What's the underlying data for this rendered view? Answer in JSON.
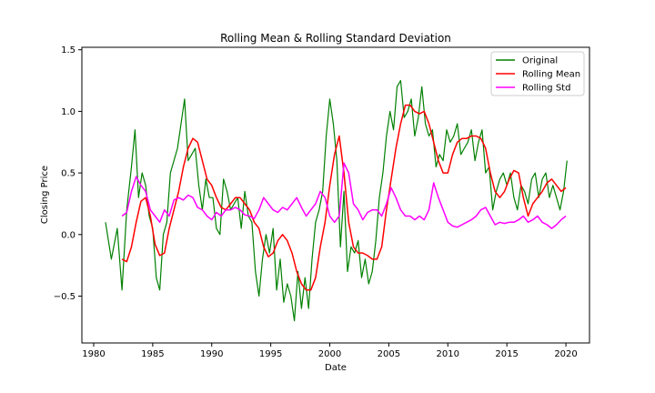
{
  "chart_data": {
    "type": "line",
    "title": "Rolling Mean & Rolling Standard Deviation",
    "xlabel": "Date",
    "ylabel": "Closing Price",
    "xlim": [
      1979.0,
      2022.0
    ],
    "ylim": [
      -0.88,
      1.52
    ],
    "xticks": [
      1980,
      1985,
      1990,
      1995,
      2000,
      2005,
      2010,
      2015,
      2020
    ],
    "yticks": [
      -0.5,
      0.0,
      0.5,
      1.0,
      1.5
    ],
    "ytick_labels": [
      "−0.5",
      "0.0",
      "0.5",
      "1.0",
      "1.5"
    ],
    "grid": false,
    "legend_position": "top-right",
    "series": [
      {
        "name": "Original",
        "color": "#008000",
        "x": [
          1981.0,
          1981.5,
          1982.0,
          1982.4,
          1982.8,
          1983.2,
          1983.5,
          1983.8,
          1984.1,
          1984.4,
          1984.7,
          1985.0,
          1985.3,
          1985.6,
          1985.9,
          1986.2,
          1986.5,
          1986.8,
          1987.1,
          1987.4,
          1987.7,
          1988.0,
          1988.3,
          1988.6,
          1988.9,
          1989.2,
          1989.5,
          1989.8,
          1990.1,
          1990.4,
          1990.7,
          1991.0,
          1991.3,
          1991.6,
          1991.9,
          1992.2,
          1992.5,
          1992.8,
          1993.1,
          1993.4,
          1993.7,
          1994.0,
          1994.3,
          1994.6,
          1994.9,
          1995.2,
          1995.5,
          1995.8,
          1996.1,
          1996.4,
          1996.7,
          1997.0,
          1997.3,
          1997.6,
          1997.9,
          1998.2,
          1998.5,
          1998.8,
          1999.1,
          1999.4,
          1999.7,
          2000.0,
          2000.3,
          2000.6,
          2000.9,
          2001.2,
          2001.5,
          2001.8,
          2002.1,
          2002.4,
          2002.7,
          2003.0,
          2003.3,
          2003.6,
          2003.9,
          2004.2,
          2004.5,
          2004.8,
          2005.1,
          2005.4,
          2005.7,
          2006.0,
          2006.3,
          2006.6,
          2006.9,
          2007.2,
          2007.5,
          2007.8,
          2008.1,
          2008.4,
          2008.7,
          2009.0,
          2009.3,
          2009.6,
          2009.9,
          2010.2,
          2010.5,
          2010.8,
          2011.1,
          2011.4,
          2011.7,
          2012.0,
          2012.3,
          2012.6,
          2012.9,
          2013.2,
          2013.5,
          2013.8,
          2014.1,
          2014.4,
          2014.7,
          2015.0,
          2015.3,
          2015.6,
          2015.9,
          2016.2,
          2016.5,
          2016.8,
          2017.1,
          2017.4,
          2017.7,
          2018.0,
          2018.3,
          2018.6,
          2018.9,
          2019.2,
          2019.5,
          2019.8,
          2020.1
        ],
        "values": [
          0.1,
          -0.2,
          0.05,
          -0.45,
          0.2,
          0.55,
          0.85,
          0.3,
          0.5,
          0.4,
          0.15,
          0.05,
          -0.35,
          -0.45,
          0.0,
          0.1,
          0.5,
          0.6,
          0.7,
          0.9,
          1.1,
          0.6,
          0.65,
          0.7,
          0.4,
          0.2,
          0.45,
          0.3,
          0.3,
          0.05,
          0.0,
          0.45,
          0.35,
          0.2,
          0.25,
          0.3,
          0.05,
          0.35,
          0.15,
          0.1,
          -0.3,
          -0.5,
          -0.2,
          0.0,
          -0.15,
          0.05,
          -0.45,
          -0.2,
          -0.55,
          -0.4,
          -0.5,
          -0.7,
          -0.3,
          -0.6,
          -0.35,
          -0.6,
          -0.2,
          0.1,
          0.2,
          0.35,
          0.8,
          1.1,
          0.9,
          0.6,
          -0.1,
          0.35,
          -0.3,
          -0.1,
          -0.15,
          -0.05,
          -0.35,
          -0.2,
          -0.4,
          -0.3,
          -0.05,
          0.3,
          0.5,
          0.8,
          1.0,
          0.85,
          1.2,
          1.25,
          0.95,
          1.0,
          1.1,
          0.8,
          0.95,
          1.2,
          0.9,
          0.8,
          0.85,
          0.55,
          0.65,
          0.6,
          0.85,
          0.75,
          0.8,
          0.9,
          0.65,
          0.7,
          0.75,
          0.85,
          0.6,
          0.75,
          0.85,
          0.5,
          0.55,
          0.2,
          0.35,
          0.45,
          0.5,
          0.4,
          0.5,
          0.3,
          0.2,
          0.4,
          0.35,
          0.25,
          0.45,
          0.5,
          0.3,
          0.45,
          0.5,
          0.3,
          0.4,
          0.3,
          0.2,
          0.35,
          0.6
        ]
      },
      {
        "name": "Rolling Mean",
        "color": "#ff0000",
        "x": [
          1982.4,
          1982.8,
          1983.2,
          1983.6,
          1984.0,
          1984.4,
          1984.8,
          1985.2,
          1985.6,
          1986.0,
          1986.4,
          1986.8,
          1987.2,
          1987.6,
          1988.0,
          1988.4,
          1988.8,
          1989.2,
          1989.6,
          1990.0,
          1990.4,
          1990.8,
          1991.2,
          1991.6,
          1992.0,
          1992.4,
          1992.8,
          1993.2,
          1993.6,
          1994.0,
          1994.4,
          1994.8,
          1995.2,
          1995.6,
          1996.0,
          1996.4,
          1996.8,
          1997.2,
          1997.6,
          1998.0,
          1998.4,
          1998.8,
          1999.2,
          1999.6,
          2000.0,
          2000.4,
          2000.8,
          2001.2,
          2001.6,
          2002.0,
          2002.4,
          2002.8,
          2003.2,
          2003.6,
          2004.0,
          2004.4,
          2004.8,
          2005.2,
          2005.6,
          2006.0,
          2006.4,
          2006.8,
          2007.2,
          2007.6,
          2008.0,
          2008.4,
          2008.8,
          2009.2,
          2009.6,
          2010.0,
          2010.4,
          2010.8,
          2011.2,
          2011.6,
          2012.0,
          2012.4,
          2012.8,
          2013.2,
          2013.6,
          2014.0,
          2014.4,
          2014.8,
          2015.2,
          2015.6,
          2016.0,
          2016.4,
          2016.8,
          2017.2,
          2017.6,
          2018.0,
          2018.4,
          2018.8,
          2019.2,
          2019.6,
          2020.0
        ],
        "values": [
          -0.2,
          -0.22,
          -0.1,
          0.1,
          0.27,
          0.3,
          0.15,
          -0.08,
          -0.17,
          -0.15,
          0.05,
          0.2,
          0.35,
          0.55,
          0.7,
          0.78,
          0.75,
          0.6,
          0.45,
          0.4,
          0.3,
          0.22,
          0.2,
          0.25,
          0.3,
          0.3,
          0.25,
          0.2,
          0.1,
          0.05,
          -0.1,
          -0.18,
          -0.15,
          -0.05,
          0.0,
          -0.05,
          -0.15,
          -0.3,
          -0.4,
          -0.45,
          -0.45,
          -0.35,
          -0.1,
          0.1,
          0.4,
          0.65,
          0.8,
          0.5,
          0.1,
          -0.1,
          -0.15,
          -0.15,
          -0.17,
          -0.2,
          -0.2,
          -0.1,
          0.2,
          0.45,
          0.7,
          0.9,
          1.05,
          1.05,
          1.0,
          0.98,
          1.0,
          0.9,
          0.75,
          0.6,
          0.5,
          0.5,
          0.65,
          0.75,
          0.78,
          0.78,
          0.8,
          0.8,
          0.78,
          0.7,
          0.5,
          0.35,
          0.3,
          0.35,
          0.45,
          0.52,
          0.5,
          0.3,
          0.15,
          0.25,
          0.3,
          0.35,
          0.42,
          0.45,
          0.4,
          0.35,
          0.38
        ]
      },
      {
        "name": "Rolling Std",
        "color": "#ff00ff",
        "x": [
          1982.4,
          1982.8,
          1983.2,
          1983.6,
          1984.0,
          1984.4,
          1984.8,
          1985.2,
          1985.6,
          1986.0,
          1986.4,
          1986.8,
          1987.2,
          1987.6,
          1988.0,
          1988.4,
          1988.8,
          1989.2,
          1989.6,
          1990.0,
          1990.4,
          1990.8,
          1991.2,
          1991.6,
          1992.0,
          1992.4,
          1992.8,
          1993.2,
          1993.6,
          1994.0,
          1994.4,
          1994.8,
          1995.2,
          1995.6,
          1996.0,
          1996.4,
          1996.8,
          1997.2,
          1997.6,
          1998.0,
          1998.4,
          1998.8,
          1999.2,
          1999.6,
          2000.0,
          2000.4,
          2000.8,
          2001.2,
          2001.6,
          2002.0,
          2002.4,
          2002.8,
          2003.2,
          2003.6,
          2004.0,
          2004.4,
          2004.8,
          2005.2,
          2005.6,
          2006.0,
          2006.4,
          2006.8,
          2007.2,
          2007.6,
          2008.0,
          2008.4,
          2008.8,
          2009.2,
          2009.6,
          2010.0,
          2010.4,
          2010.8,
          2011.2,
          2011.6,
          2012.0,
          2012.4,
          2012.8,
          2013.2,
          2013.6,
          2014.0,
          2014.4,
          2014.8,
          2015.2,
          2015.6,
          2016.0,
          2016.4,
          2016.8,
          2017.2,
          2017.6,
          2018.0,
          2018.4,
          2018.8,
          2019.2,
          2019.6,
          2020.0
        ],
        "values": [
          0.15,
          0.18,
          0.35,
          0.47,
          0.4,
          0.35,
          0.2,
          0.15,
          0.1,
          0.2,
          0.15,
          0.28,
          0.3,
          0.28,
          0.32,
          0.3,
          0.22,
          0.2,
          0.15,
          0.12,
          0.18,
          0.15,
          0.2,
          0.2,
          0.22,
          0.2,
          0.16,
          0.15,
          0.13,
          0.2,
          0.3,
          0.25,
          0.2,
          0.18,
          0.22,
          0.2,
          0.25,
          0.3,
          0.22,
          0.15,
          0.2,
          0.25,
          0.35,
          0.3,
          0.15,
          0.1,
          0.15,
          0.58,
          0.5,
          0.25,
          0.2,
          0.12,
          0.18,
          0.2,
          0.2,
          0.15,
          0.25,
          0.38,
          0.3,
          0.2,
          0.15,
          0.15,
          0.12,
          0.15,
          0.12,
          0.2,
          0.42,
          0.3,
          0.2,
          0.1,
          0.07,
          0.06,
          0.08,
          0.1,
          0.12,
          0.15,
          0.2,
          0.22,
          0.15,
          0.08,
          0.1,
          0.09,
          0.1,
          0.1,
          0.12,
          0.15,
          0.1,
          0.12,
          0.15,
          0.1,
          0.08,
          0.05,
          0.08,
          0.12,
          0.15
        ]
      }
    ]
  }
}
